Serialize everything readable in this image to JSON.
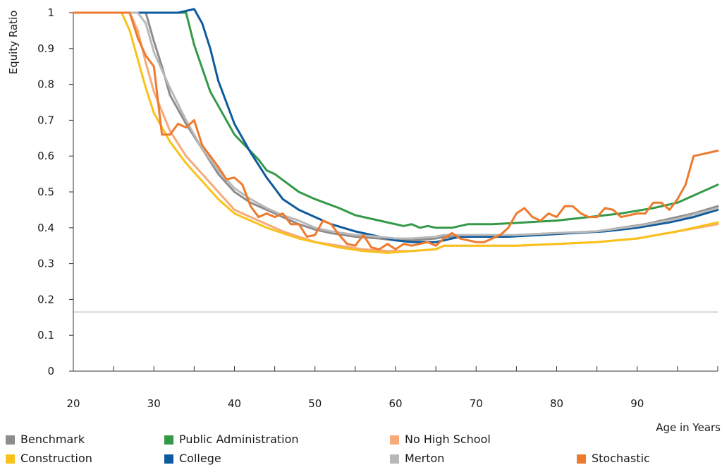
{
  "chart_data": {
    "type": "line",
    "title": "",
    "xlabel": "Age in Years",
    "ylabel": "Equity Ratio",
    "xlim": [
      20,
      100
    ],
    "ylim": [
      0,
      1
    ],
    "x_ticks": [
      20,
      30,
      40,
      50,
      60,
      70,
      80,
      90
    ],
    "y_ticks": [
      0,
      0.1,
      0.2,
      0.3,
      0.4,
      0.5,
      0.6,
      0.7,
      0.8,
      0.9,
      1
    ],
    "y_tick_labels": [
      "0",
      "0.1",
      "0.2",
      "0.3",
      "0.4",
      "0.5",
      "0.6",
      "0.7",
      "0.8",
      "0.9",
      "1"
    ],
    "reference_line": 0.165,
    "grid": false,
    "legend_position": "bottom",
    "series": [
      {
        "name": "Benchmark",
        "color": "#8c8c8c",
        "points": [
          [
            20,
            1
          ],
          [
            29,
            1
          ],
          [
            30,
            0.92
          ],
          [
            31,
            0.85
          ],
          [
            32,
            0.77
          ],
          [
            34,
            0.69
          ],
          [
            36,
            0.62
          ],
          [
            38,
            0.55
          ],
          [
            40,
            0.5
          ],
          [
            42,
            0.47
          ],
          [
            44,
            0.45
          ],
          [
            46,
            0.43
          ],
          [
            48,
            0.41
          ],
          [
            50,
            0.395
          ],
          [
            52,
            0.385
          ],
          [
            55,
            0.375
          ],
          [
            58,
            0.37
          ],
          [
            60,
            0.365
          ],
          [
            62,
            0.365
          ],
          [
            65,
            0.37
          ],
          [
            66,
            0.375
          ],
          [
            70,
            0.375
          ],
          [
            75,
            0.38
          ],
          [
            80,
            0.385
          ],
          [
            85,
            0.39
          ],
          [
            88,
            0.4
          ],
          [
            91,
            0.41
          ],
          [
            94,
            0.425
          ],
          [
            97,
            0.44
          ],
          [
            100,
            0.46
          ]
        ]
      },
      {
        "name": "Public Administration",
        "color": "#339947",
        "points": [
          [
            20,
            1
          ],
          [
            34,
            1
          ],
          [
            35,
            0.91
          ],
          [
            37,
            0.78
          ],
          [
            40,
            0.66
          ],
          [
            43,
            0.59
          ],
          [
            44,
            0.56
          ],
          [
            45,
            0.55
          ],
          [
            48,
            0.5
          ],
          [
            50,
            0.48
          ],
          [
            53,
            0.455
          ],
          [
            55,
            0.435
          ],
          [
            58,
            0.42
          ],
          [
            61,
            0.405
          ],
          [
            62,
            0.41
          ],
          [
            63,
            0.4
          ],
          [
            64,
            0.405
          ],
          [
            65,
            0.4
          ],
          [
            67,
            0.4
          ],
          [
            69,
            0.41
          ],
          [
            72,
            0.41
          ],
          [
            76,
            0.415
          ],
          [
            80,
            0.42
          ],
          [
            84,
            0.43
          ],
          [
            88,
            0.44
          ],
          [
            92,
            0.455
          ],
          [
            95,
            0.47
          ],
          [
            98,
            0.5
          ],
          [
            100,
            0.52
          ]
        ]
      },
      {
        "name": "No High School",
        "color": "#f7a97a",
        "points": [
          [
            20,
            1
          ],
          [
            27,
            1
          ],
          [
            28,
            0.95
          ],
          [
            29,
            0.86
          ],
          [
            30,
            0.78
          ],
          [
            32,
            0.67
          ],
          [
            34,
            0.6
          ],
          [
            36,
            0.55
          ],
          [
            38,
            0.5
          ],
          [
            40,
            0.45
          ],
          [
            42,
            0.43
          ],
          [
            44,
            0.41
          ],
          [
            46,
            0.39
          ],
          [
            48,
            0.375
          ],
          [
            50,
            0.36
          ],
          [
            53,
            0.35
          ],
          [
            56,
            0.34
          ],
          [
            59,
            0.335
          ],
          [
            62,
            0.335
          ],
          [
            65,
            0.34
          ],
          [
            66,
            0.35
          ],
          [
            70,
            0.35
          ],
          [
            75,
            0.35
          ],
          [
            80,
            0.355
          ],
          [
            85,
            0.36
          ],
          [
            90,
            0.37
          ],
          [
            95,
            0.39
          ],
          [
            100,
            0.41
          ]
        ]
      },
      {
        "name": "Construction",
        "color": "#f8c21a",
        "points": [
          [
            20,
            1
          ],
          [
            26,
            1
          ],
          [
            27,
            0.95
          ],
          [
            28,
            0.87
          ],
          [
            29,
            0.79
          ],
          [
            30,
            0.72
          ],
          [
            32,
            0.64
          ],
          [
            34,
            0.58
          ],
          [
            36,
            0.53
          ],
          [
            38,
            0.48
          ],
          [
            40,
            0.44
          ],
          [
            42,
            0.42
          ],
          [
            44,
            0.4
          ],
          [
            46,
            0.385
          ],
          [
            48,
            0.37
          ],
          [
            50,
            0.36
          ],
          [
            53,
            0.345
          ],
          [
            56,
            0.335
          ],
          [
            59,
            0.33
          ],
          [
            62,
            0.335
          ],
          [
            65,
            0.34
          ],
          [
            66,
            0.35
          ],
          [
            70,
            0.35
          ],
          [
            75,
            0.35
          ],
          [
            80,
            0.355
          ],
          [
            85,
            0.36
          ],
          [
            90,
            0.37
          ],
          [
            95,
            0.39
          ],
          [
            100,
            0.415
          ]
        ]
      },
      {
        "name": "College",
        "color": "#0e5a9e",
        "points": [
          [
            20,
            1
          ],
          [
            33,
            1
          ],
          [
            35,
            1.01
          ],
          [
            36,
            0.97
          ],
          [
            37,
            0.9
          ],
          [
            38,
            0.81
          ],
          [
            40,
            0.69
          ],
          [
            42,
            0.61
          ],
          [
            44,
            0.54
          ],
          [
            46,
            0.48
          ],
          [
            48,
            0.45
          ],
          [
            50,
            0.43
          ],
          [
            52,
            0.41
          ],
          [
            55,
            0.39
          ],
          [
            58,
            0.375
          ],
          [
            60,
            0.365
          ],
          [
            62,
            0.36
          ],
          [
            65,
            0.36
          ],
          [
            66,
            0.365
          ],
          [
            68,
            0.375
          ],
          [
            70,
            0.375
          ],
          [
            74,
            0.375
          ],
          [
            78,
            0.38
          ],
          [
            82,
            0.385
          ],
          [
            86,
            0.39
          ],
          [
            90,
            0.4
          ],
          [
            94,
            0.415
          ],
          [
            97,
            0.43
          ],
          [
            100,
            0.45
          ]
        ]
      },
      {
        "name": "Merton",
        "color": "#b8b8b8",
        "points": [
          [
            20,
            1
          ],
          [
            28,
            1
          ],
          [
            29,
            0.97
          ],
          [
            30,
            0.89
          ],
          [
            32,
            0.79
          ],
          [
            34,
            0.7
          ],
          [
            36,
            0.62
          ],
          [
            38,
            0.56
          ],
          [
            40,
            0.51
          ],
          [
            42,
            0.48
          ],
          [
            44,
            0.455
          ],
          [
            46,
            0.435
          ],
          [
            48,
            0.42
          ],
          [
            50,
            0.4
          ],
          [
            52,
            0.39
          ],
          [
            55,
            0.38
          ],
          [
            58,
            0.375
          ],
          [
            60,
            0.37
          ],
          [
            62,
            0.37
          ],
          [
            65,
            0.375
          ],
          [
            66,
            0.38
          ],
          [
            70,
            0.38
          ],
          [
            75,
            0.38
          ],
          [
            80,
            0.385
          ],
          [
            85,
            0.39
          ],
          [
            90,
            0.405
          ],
          [
            95,
            0.425
          ],
          [
            100,
            0.455
          ]
        ]
      },
      {
        "name": "Stochastic",
        "color": "#ee7a2e",
        "points": [
          [
            20,
            1
          ],
          [
            27,
            1
          ],
          [
            28,
            0.93
          ],
          [
            29,
            0.88
          ],
          [
            30,
            0.85
          ],
          [
            31,
            0.66
          ],
          [
            32,
            0.66
          ],
          [
            33,
            0.69
          ],
          [
            34,
            0.68
          ],
          [
            35,
            0.7
          ],
          [
            36,
            0.63
          ],
          [
            37,
            0.6
          ],
          [
            38,
            0.57
          ],
          [
            39,
            0.535
          ],
          [
            40,
            0.54
          ],
          [
            41,
            0.52
          ],
          [
            42,
            0.46
          ],
          [
            43,
            0.43
          ],
          [
            44,
            0.44
          ],
          [
            45,
            0.43
          ],
          [
            46,
            0.44
          ],
          [
            47,
            0.41
          ],
          [
            48,
            0.41
          ],
          [
            49,
            0.375
          ],
          [
            50,
            0.38
          ],
          [
            51,
            0.42
          ],
          [
            52,
            0.41
          ],
          [
            53,
            0.38
          ],
          [
            54,
            0.355
          ],
          [
            55,
            0.35
          ],
          [
            56,
            0.38
          ],
          [
            57,
            0.345
          ],
          [
            58,
            0.34
          ],
          [
            59,
            0.355
          ],
          [
            60,
            0.34
          ],
          [
            61,
            0.355
          ],
          [
            62,
            0.35
          ],
          [
            63,
            0.355
          ],
          [
            64,
            0.36
          ],
          [
            65,
            0.35
          ],
          [
            66,
            0.37
          ],
          [
            67,
            0.385
          ],
          [
            68,
            0.37
          ],
          [
            69,
            0.365
          ],
          [
            70,
            0.36
          ],
          [
            71,
            0.36
          ],
          [
            72,
            0.37
          ],
          [
            73,
            0.38
          ],
          [
            74,
            0.4
          ],
          [
            75,
            0.44
          ],
          [
            76,
            0.455
          ],
          [
            77,
            0.43
          ],
          [
            78,
            0.42
          ],
          [
            79,
            0.44
          ],
          [
            80,
            0.43
          ],
          [
            81,
            0.46
          ],
          [
            82,
            0.46
          ],
          [
            83,
            0.44
          ],
          [
            84,
            0.43
          ],
          [
            85,
            0.43
          ],
          [
            86,
            0.455
          ],
          [
            87,
            0.45
          ],
          [
            88,
            0.43
          ],
          [
            89,
            0.435
          ],
          [
            90,
            0.44
          ],
          [
            91,
            0.44
          ],
          [
            92,
            0.47
          ],
          [
            93,
            0.47
          ],
          [
            94,
            0.45
          ],
          [
            95,
            0.48
          ],
          [
            96,
            0.52
          ],
          [
            97,
            0.6
          ],
          [
            98,
            0.605
          ],
          [
            100,
            0.615
          ]
        ]
      }
    ]
  }
}
